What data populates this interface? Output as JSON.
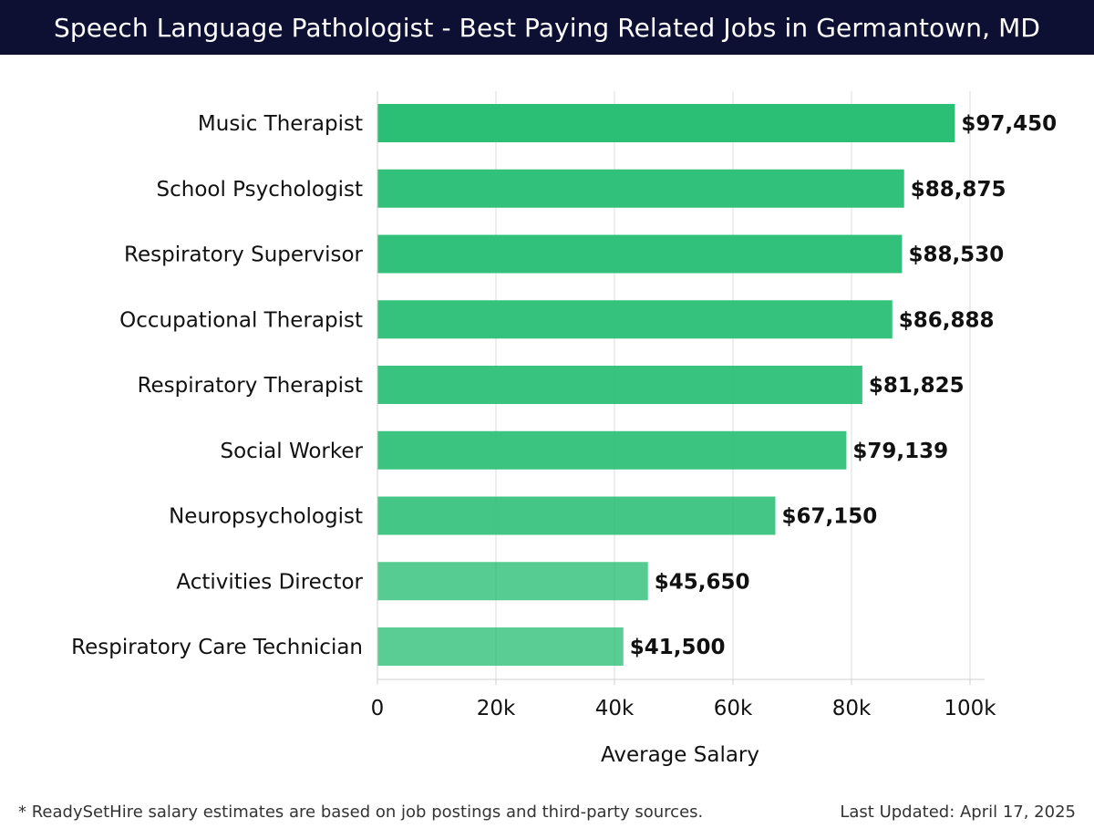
{
  "header": {
    "title": "Speech Language Pathologist - Best Paying Related Jobs in Germantown, MD"
  },
  "chart_data": {
    "type": "bar",
    "orientation": "horizontal",
    "categories": [
      "Music Therapist",
      "School Psychologist",
      "Respiratory Supervisor",
      "Occupational Therapist",
      "Respiratory Therapist",
      "Social Worker",
      "Neuropsychologist",
      "Activities Director",
      "Respiratory Care Technician"
    ],
    "values": [
      97450,
      88875,
      88530,
      86888,
      81825,
      79139,
      67150,
      45650,
      41500
    ],
    "value_labels": [
      "$97,450",
      "$88,875",
      "$88,530",
      "$86,888",
      "$81,825",
      "$79,139",
      "$67,150",
      "$45,650",
      "$41,500"
    ],
    "xlabel": "Average Salary",
    "ylabel": "",
    "xlim": [
      0,
      100000
    ],
    "x_ticks": [
      0,
      20000,
      40000,
      60000,
      80000,
      100000
    ],
    "x_tick_labels": [
      "0",
      "20k",
      "40k",
      "60k",
      "80k",
      "100k"
    ],
    "grid": "vertical",
    "bar_color_dark": "#2bbf76",
    "bar_color_light": "#5ccf98"
  },
  "footer": {
    "note": "* ReadySetHire salary estimates are based on job postings and third-party sources.",
    "updated": "Last Updated: April 17, 2025"
  }
}
